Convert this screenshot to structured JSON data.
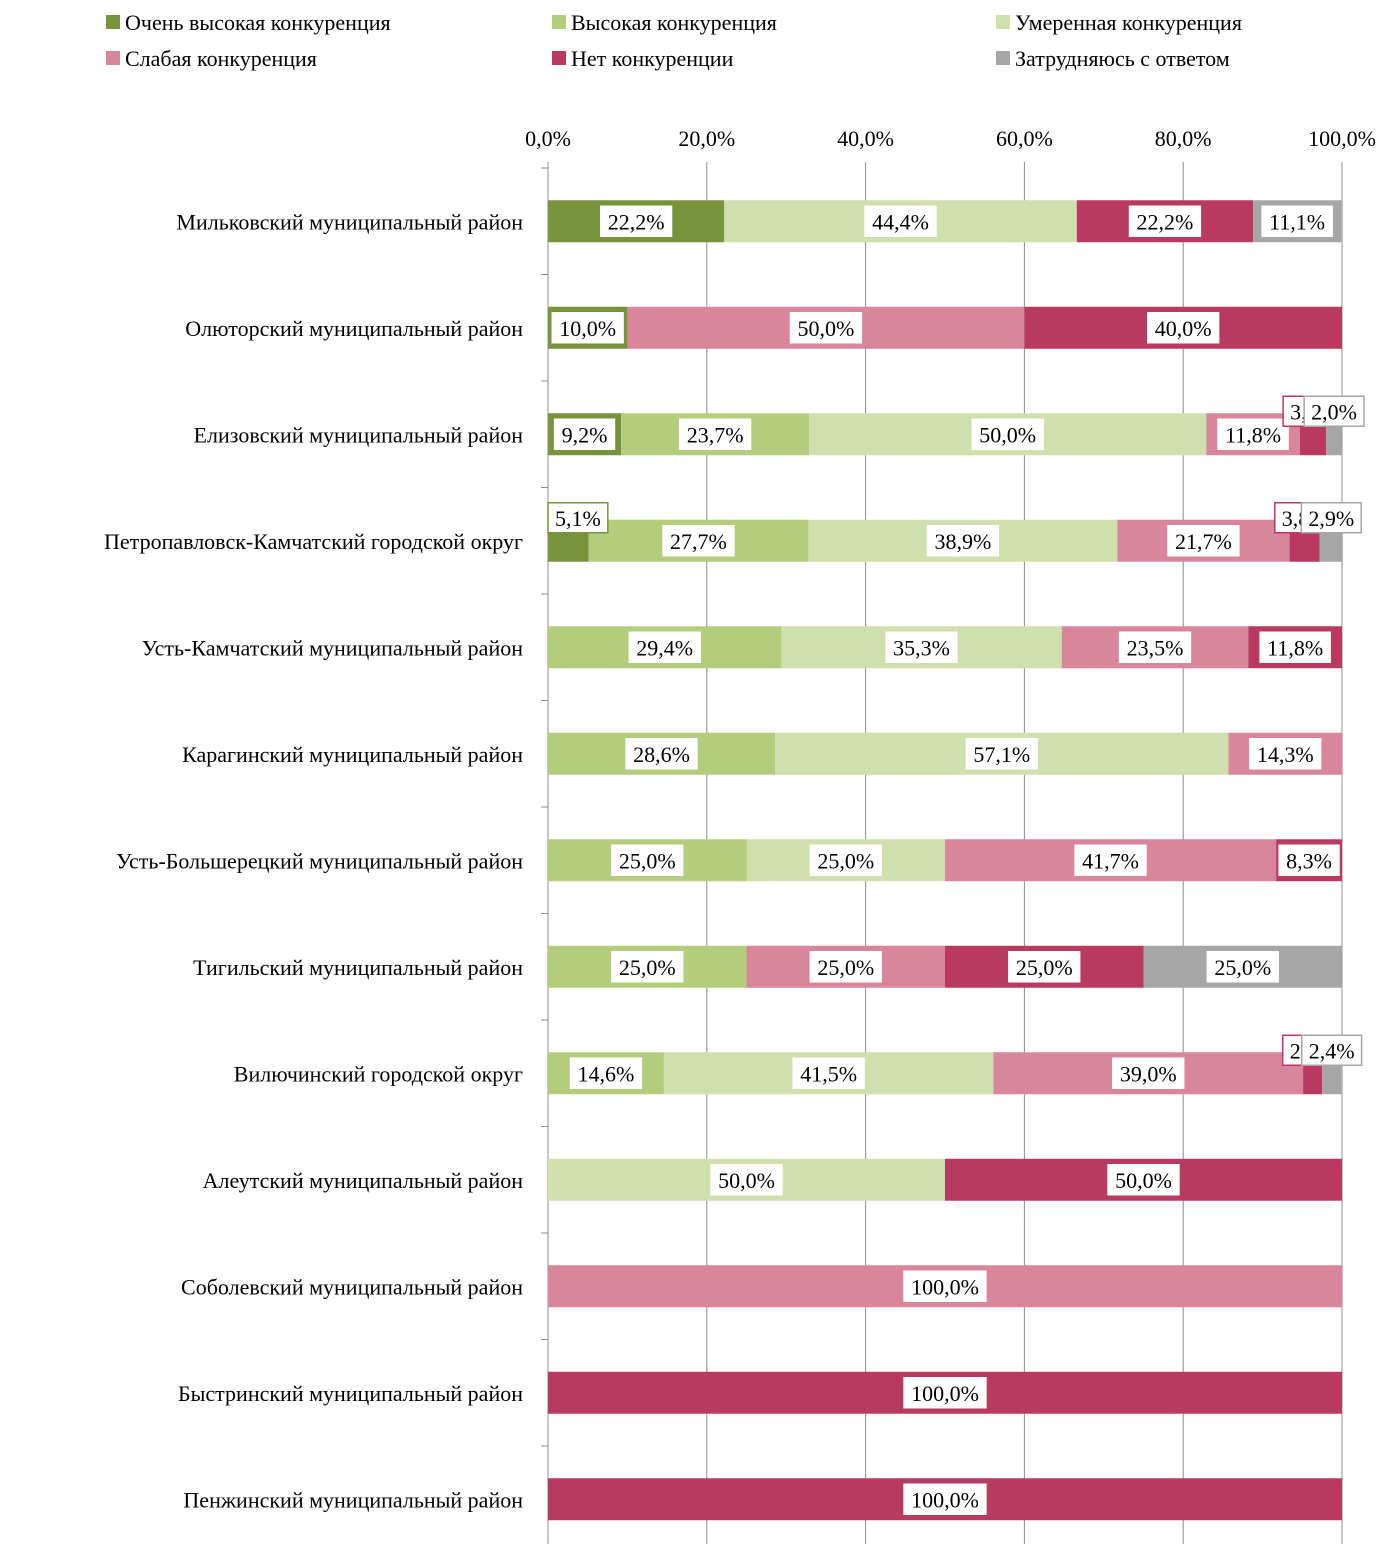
{
  "chart_data": {
    "type": "bar",
    "orientation": "horizontal",
    "stacked": "percent",
    "xlim": [
      0,
      100
    ],
    "x_ticks": [
      "0,0%",
      "20,0%",
      "40,0%",
      "60,0%",
      "80,0%",
      "100,0%"
    ],
    "x_tick_values": [
      0,
      20,
      40,
      60,
      80,
      100
    ],
    "x_axis_position": "top",
    "grid": "vertical",
    "legend_position": "top",
    "categories": [
      "Мильковский муниципальный район",
      "Олюторский муниципальный район",
      "Елизовский муниципальный район",
      "Петропавловск-Камчатский городской округ",
      "Усть-Камчатский муниципальный район",
      "Карагинский муниципальный район",
      "Усть-Большерецкий муниципальный район",
      "Тигильский муниципальный район",
      "Вилючинский городской округ",
      "Алеутский муниципальный район",
      "Соболевский муниципальный район",
      "Быстринский муниципальный район",
      "Пенжинский муниципальный район"
    ],
    "series": [
      {
        "name": "Очень высокая конкуренция",
        "color": "#77933c",
        "values": [
          22.2,
          10.0,
          9.2,
          5.1,
          0,
          0,
          0,
          0,
          0,
          0,
          0,
          0,
          0
        ],
        "labels": [
          "22,2%",
          "10,0%",
          "9,2%",
          "5,1%",
          null,
          null,
          null,
          null,
          null,
          null,
          null,
          null,
          null
        ]
      },
      {
        "name": "Высокая конкуренция",
        "color": "#b3cd7d",
        "values": [
          0,
          0,
          23.7,
          27.7,
          29.4,
          28.6,
          25.0,
          25.0,
          14.6,
          0,
          0,
          0,
          0
        ],
        "labels": [
          null,
          null,
          "23,7%",
          "27,7%",
          "29,4%",
          "28,6%",
          "25,0%",
          "25,0%",
          "14,6%",
          null,
          null,
          null,
          null
        ]
      },
      {
        "name": "Умеренная конкуренция",
        "color": "#d0dfae",
        "values": [
          44.4,
          0,
          50.0,
          38.9,
          35.3,
          57.1,
          25.0,
          0,
          41.5,
          50.0,
          0,
          0,
          0
        ],
        "labels": [
          "44,4%",
          null,
          "50,0%",
          "38,9%",
          "35,3%",
          "57,1%",
          "25,0%",
          null,
          "41,5%",
          "50,0%",
          null,
          null,
          null
        ]
      },
      {
        "name": "Слабая конкуренция",
        "color": "#d9869c",
        "values": [
          0,
          50.0,
          11.8,
          21.7,
          23.5,
          14.3,
          41.7,
          25.0,
          39.0,
          0,
          100.0,
          0,
          0
        ],
        "labels": [
          null,
          "50,0%",
          "11,8%",
          "21,7%",
          "23,5%",
          "14,3%",
          "41,7%",
          "25,0%",
          "39,0%",
          null,
          "100,0%",
          null,
          null
        ]
      },
      {
        "name": "Нет конкуренции",
        "color": "#b93a60",
        "values": [
          22.2,
          40.0,
          3.3,
          3.8,
          11.8,
          0,
          8.3,
          25.0,
          2.4,
          50.0,
          0,
          100.0,
          100.0
        ],
        "labels": [
          "22,2%",
          "40,0%",
          "3,3%",
          "3,8%",
          "11,8%",
          null,
          "8,3%",
          "25,0%",
          "2,4%",
          "50,0%",
          null,
          "100,0%",
          "100,0%"
        ]
      },
      {
        "name": "Затрудняюсь с ответом",
        "color": "#a6a6a6",
        "values": [
          11.1,
          0,
          2.0,
          2.9,
          0,
          0,
          0,
          25.0,
          2.4,
          0,
          0,
          0,
          0
        ],
        "labels": [
          "11,1%",
          null,
          "2,0%",
          "2,9%",
          null,
          null,
          null,
          "25,0%",
          "2,4%",
          null,
          null,
          null,
          null
        ]
      }
    ]
  }
}
